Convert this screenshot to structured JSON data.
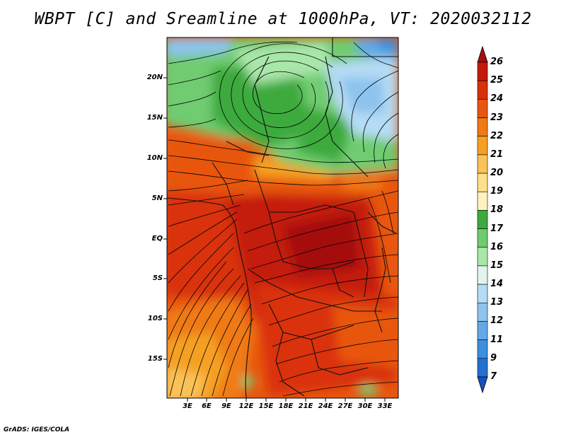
{
  "title": "WBPT [C] and Sreamline at 1000hPa, VT: 2020032112",
  "footer": "GrADS: IGES/COLA",
  "axes": {
    "lat_labels": [
      "20N",
      "15N",
      "10N",
      "5N",
      "EQ",
      "5S",
      "10S",
      "15S"
    ],
    "lon_labels": [
      "3E",
      "6E",
      "9E",
      "12E",
      "15E",
      "18E",
      "21E",
      "24E",
      "27E",
      "30E",
      "33E"
    ]
  },
  "colorbar": {
    "labels": [
      "26",
      "25",
      "24",
      "23",
      "22",
      "21",
      "20",
      "19",
      "18",
      "17",
      "16",
      "15",
      "14",
      "13",
      "12",
      "11",
      "9",
      "7"
    ],
    "colors": [
      "#a50f0f",
      "#c41a0c",
      "#d9300a",
      "#e8560f",
      "#f07a14",
      "#f5a023",
      "#fac257",
      "#fde08c",
      "#fff2bf",
      "#3daa3d",
      "#6fcc6f",
      "#a9e6a9",
      "#e3f4ec",
      "#b5dcf5",
      "#8ec3ee",
      "#64a9e6",
      "#3d8edc",
      "#2270d0",
      "#1550c0"
    ]
  }
}
